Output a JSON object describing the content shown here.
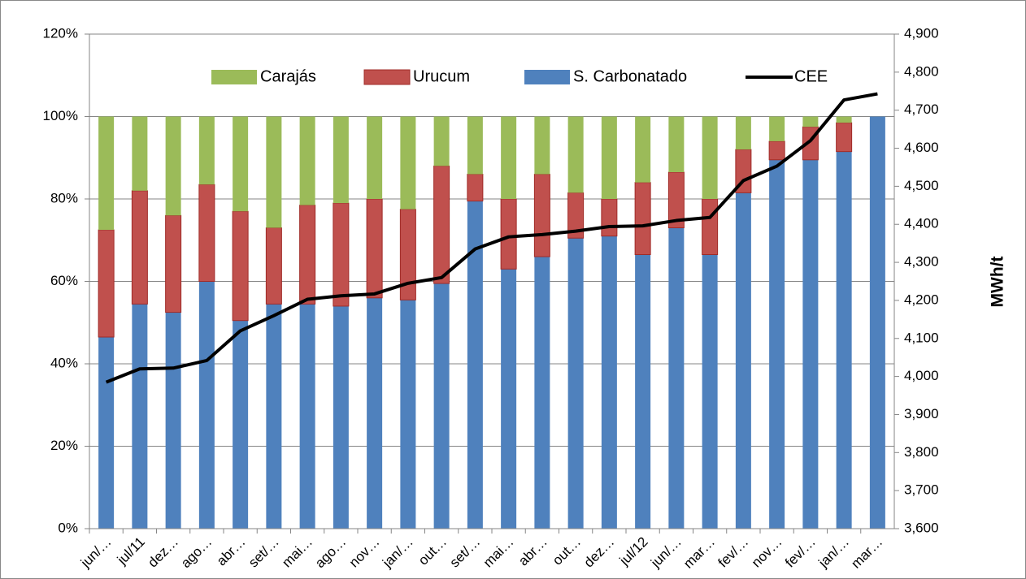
{
  "chart_data": {
    "type": "stacked-bar-line",
    "categories": [
      "jun/…",
      "jul/11",
      "dez…",
      "ago…",
      "abr…",
      "set/…",
      "mai…",
      "ago…",
      "nov…",
      "jan/…",
      "out…",
      "set/…",
      "mai…",
      "abr…",
      "out…",
      "dez…",
      "jul/12",
      "jun/…",
      "mar…",
      "fev/…",
      "nov…",
      "fev/…",
      "jan/…",
      "mar…"
    ],
    "series": [
      {
        "name": "S. Carbonatado",
        "color": "#4f81bd",
        "values": [
          46.5,
          54.5,
          52.5,
          60,
          50.5,
          54.5,
          54.5,
          54,
          56,
          55.5,
          59.5,
          79.5,
          63,
          66,
          70.5,
          71,
          66.5,
          73,
          66.5,
          81.5,
          89.5,
          89.5,
          91.5,
          100
        ]
      },
      {
        "name": "Urucum",
        "color": "#c0504d",
        "values": [
          26,
          27.5,
          23.5,
          23.5,
          26.5,
          18.5,
          24,
          25,
          24,
          22,
          28.5,
          6.5,
          17,
          20,
          11,
          9,
          17.5,
          13.5,
          13.5,
          10.5,
          4.5,
          8,
          7,
          0
        ]
      },
      {
        "name": "Carajás",
        "color": "#9bbb59",
        "values": [
          27.5,
          18,
          24,
          16.5,
          23,
          27,
          21.5,
          21,
          20,
          22.5,
          12,
          14,
          20,
          14,
          18.5,
          20,
          16,
          13.5,
          20,
          8,
          6,
          2.5,
          1.5,
          0
        ]
      },
      {
        "name": "CEE",
        "color": "#000000",
        "axis": "y2",
        "values": [
          3985,
          4020,
          4022,
          4042,
          4120,
          4160,
          4203,
          4212,
          4217,
          4245,
          4260,
          4335,
          4367,
          4373,
          4382,
          4394,
          4396,
          4410,
          4418,
          4515,
          4553,
          4620,
          4727,
          4743
        ]
      }
    ],
    "legend_order": [
      "Carajás",
      "Urucum",
      "S. Carbonatado",
      "CEE"
    ],
    "ylim": [
      0,
      120
    ],
    "yticks": [
      {
        "value": 0,
        "label": "0%"
      },
      {
        "value": 20,
        "label": "20%"
      },
      {
        "value": 40,
        "label": "40%"
      },
      {
        "value": 60,
        "label": "60%"
      },
      {
        "value": 80,
        "label": "80%"
      },
      {
        "value": 100,
        "label": "100%"
      },
      {
        "value": 120,
        "label": "120%"
      }
    ],
    "y2label": "MWh/t",
    "y2lim": [
      3600,
      4900
    ],
    "y2ticks": [
      {
        "value": 3600,
        "label": "3,600"
      },
      {
        "value": 3700,
        "label": "3,700"
      },
      {
        "value": 3800,
        "label": "3,800"
      },
      {
        "value": 3900,
        "label": "3,900"
      },
      {
        "value": 4000,
        "label": "4,000"
      },
      {
        "value": 4100,
        "label": "4,100"
      },
      {
        "value": 4200,
        "label": "4,200"
      },
      {
        "value": 4300,
        "label": "4,300"
      },
      {
        "value": 4400,
        "label": "4,400"
      },
      {
        "value": 4500,
        "label": "4,500"
      },
      {
        "value": 4600,
        "label": "4,600"
      },
      {
        "value": 4700,
        "label": "4,700"
      },
      {
        "value": 4800,
        "label": "4,800"
      },
      {
        "value": 4900,
        "label": "4,900"
      }
    ],
    "grid": true
  }
}
